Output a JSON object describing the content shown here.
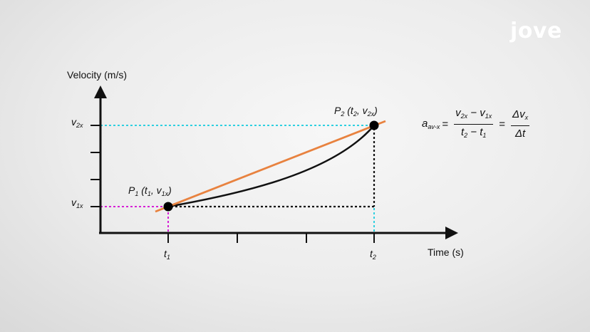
{
  "logo": {
    "text": "jove"
  },
  "axes": {
    "y_label": "Velocity (m/s)",
    "x_label": "Time (s)"
  },
  "ticks": {
    "v1": {
      "main": "v",
      "sub": "1x"
    },
    "v2": {
      "main": "v",
      "sub": "2x"
    },
    "t1": {
      "main": "t",
      "sub": "1"
    },
    "t2": {
      "main": "t",
      "sub": "2"
    }
  },
  "points": {
    "p1": {
      "name": "P",
      "idx": "1",
      "coords": "(t",
      "c_sub1": "1",
      "mid": ", v",
      "c_sub2": "1x",
      "close": ")"
    },
    "p2": {
      "name": "P",
      "idx": "2",
      "coords": "(t",
      "c_sub1": "2",
      "mid": ", v",
      "c_sub2": "2x",
      "close": ")"
    }
  },
  "formula": {
    "lhs_main": "a",
    "lhs_sub": "av-x",
    "eq": "=",
    "num1_a": "v",
    "num1_a_sub": "2x",
    "num1_op": " − v",
    "num1_b_sub": "1x",
    "den1_a": "t",
    "den1_a_sub": "2",
    "den1_op": " − t",
    "den1_b_sub": "1",
    "num2_a": "Δv",
    "num2_a_sub": "x",
    "den2": "Δt"
  },
  "colors": {
    "secant": "#e8823f",
    "curve": "#111111",
    "v1_guide": "#d61fd6",
    "v2_guide": "#2fd0e0",
    "t_guide": "#2fd0e0",
    "axis": "#111111"
  }
}
